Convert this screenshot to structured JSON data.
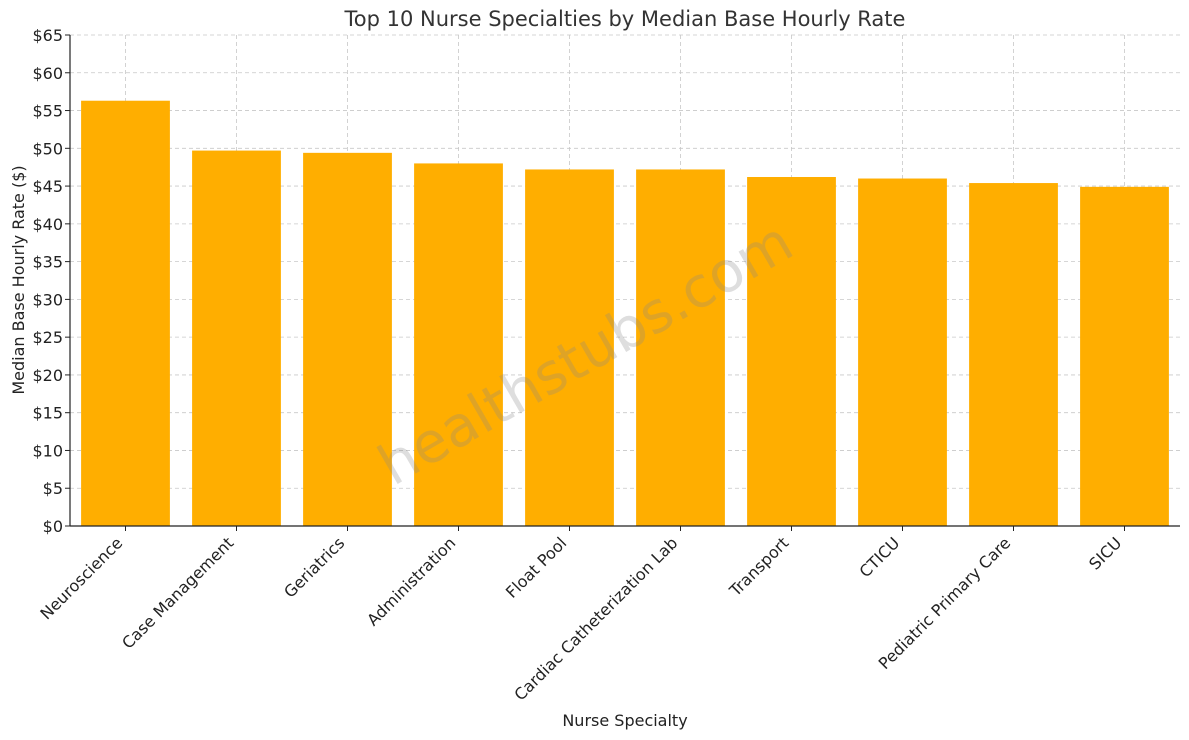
{
  "chart_data": {
    "type": "bar",
    "title": "Top 10 Nurse Specialties by Median Base Hourly Rate",
    "xlabel": "Nurse Specialty",
    "ylabel": "Median Base Hourly Rate ($)",
    "categories": [
      "Neuroscience",
      "Case Management",
      "Geriatrics",
      "Administration",
      "Float Pool",
      "Cardiac Catheterization Lab",
      "Transport",
      "CTICU",
      "Pediatric Primary Care",
      "SICU"
    ],
    "values": [
      56.3,
      49.7,
      49.4,
      48.0,
      47.2,
      47.2,
      46.2,
      46.0,
      45.4,
      44.9
    ],
    "ylim": [
      0,
      65
    ],
    "yticks": [
      0,
      5,
      10,
      15,
      20,
      25,
      30,
      35,
      40,
      45,
      50,
      55,
      60,
      65
    ],
    "ytick_labels": [
      "$0",
      "$5",
      "$10",
      "$15",
      "$20",
      "$25",
      "$30",
      "$35",
      "$40",
      "$45",
      "$50",
      "$55",
      "$60",
      "$65"
    ],
    "grid": true,
    "bar_color": "#FFAE00",
    "watermark": "healthstubs.com"
  }
}
